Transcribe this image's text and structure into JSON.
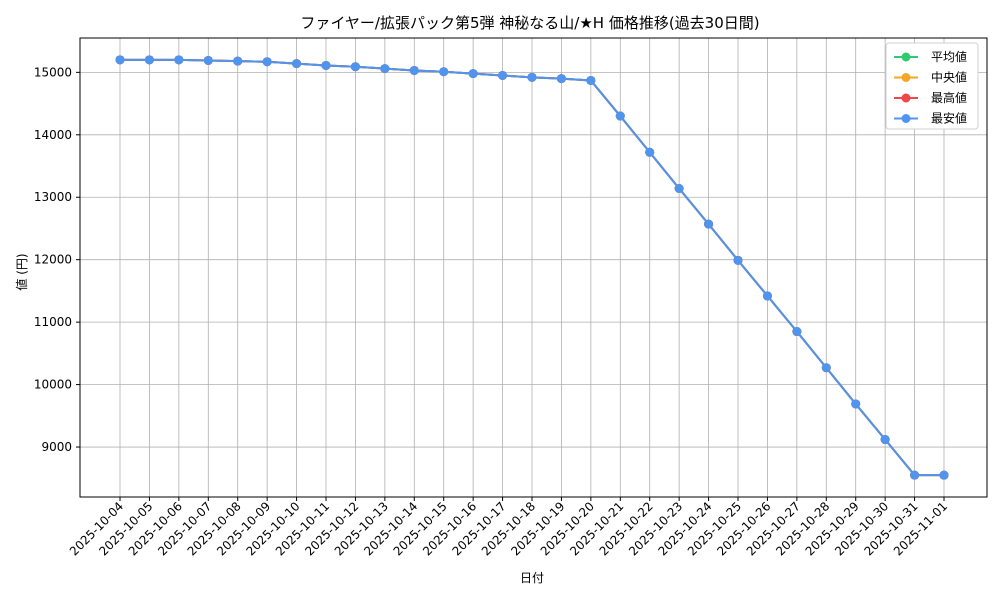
{
  "chart_data": {
    "type": "line",
    "title": "ファイヤー/拡張パック第5弾 神秘なる山/★H 価格推移(過去30日間)",
    "xlabel": "日付",
    "ylabel": "値 (円)",
    "ylim": [
      8200,
      15550
    ],
    "yticks": [
      9000,
      10000,
      11000,
      12000,
      13000,
      14000,
      15000
    ],
    "grid": true,
    "legend_position": "top-right",
    "categories": [
      "2025-10-04",
      "2025-10-05",
      "2025-10-06",
      "2025-10-07",
      "2025-10-08",
      "2025-10-09",
      "2025-10-10",
      "2025-10-11",
      "2025-10-12",
      "2025-10-13",
      "2025-10-14",
      "2025-10-15",
      "2025-10-16",
      "2025-10-17",
      "2025-10-18",
      "2025-10-19",
      "2025-10-20",
      "2025-10-21",
      "2025-10-22",
      "2025-10-23",
      "2025-10-24",
      "2025-10-25",
      "2025-10-26",
      "2025-10-27",
      "2025-10-28",
      "2025-10-29",
      "2025-10-30",
      "2025-10-31",
      "2025-11-01"
    ],
    "series": [
      {
        "name": "平均値",
        "color": "#2ecc71",
        "values": [
          15200,
          15200,
          15200,
          15190,
          15180,
          15170,
          15140,
          15110,
          15090,
          15060,
          15030,
          15010,
          14980,
          14950,
          14920,
          14900,
          14870,
          14300,
          13720,
          13140,
          12570,
          11990,
          11420,
          10850,
          10270,
          9690,
          9120,
          8550,
          8550
        ]
      },
      {
        "name": "中央値",
        "color": "#f5a623",
        "values": [
          15200,
          15200,
          15200,
          15190,
          15180,
          15170,
          15140,
          15110,
          15090,
          15060,
          15030,
          15010,
          14980,
          14950,
          14920,
          14900,
          14870,
          14300,
          13720,
          13140,
          12570,
          11990,
          11420,
          10850,
          10270,
          9690,
          9120,
          8550,
          8550
        ]
      },
      {
        "name": "最高値",
        "color": "#f0474c",
        "values": [
          15200,
          15200,
          15200,
          15190,
          15180,
          15170,
          15140,
          15110,
          15090,
          15060,
          15030,
          15010,
          14980,
          14950,
          14920,
          14900,
          14870,
          14300,
          13720,
          13140,
          12570,
          11990,
          11420,
          10850,
          10270,
          9690,
          9120,
          8550,
          8550
        ]
      },
      {
        "name": "最安値",
        "color": "#4f94ef",
        "values": [
          15200,
          15200,
          15200,
          15190,
          15180,
          15170,
          15140,
          15110,
          15090,
          15060,
          15030,
          15010,
          14980,
          14950,
          14920,
          14900,
          14870,
          14300,
          13720,
          13140,
          12570,
          11990,
          11420,
          10850,
          10270,
          9690,
          9120,
          8550,
          8550
        ]
      }
    ]
  }
}
